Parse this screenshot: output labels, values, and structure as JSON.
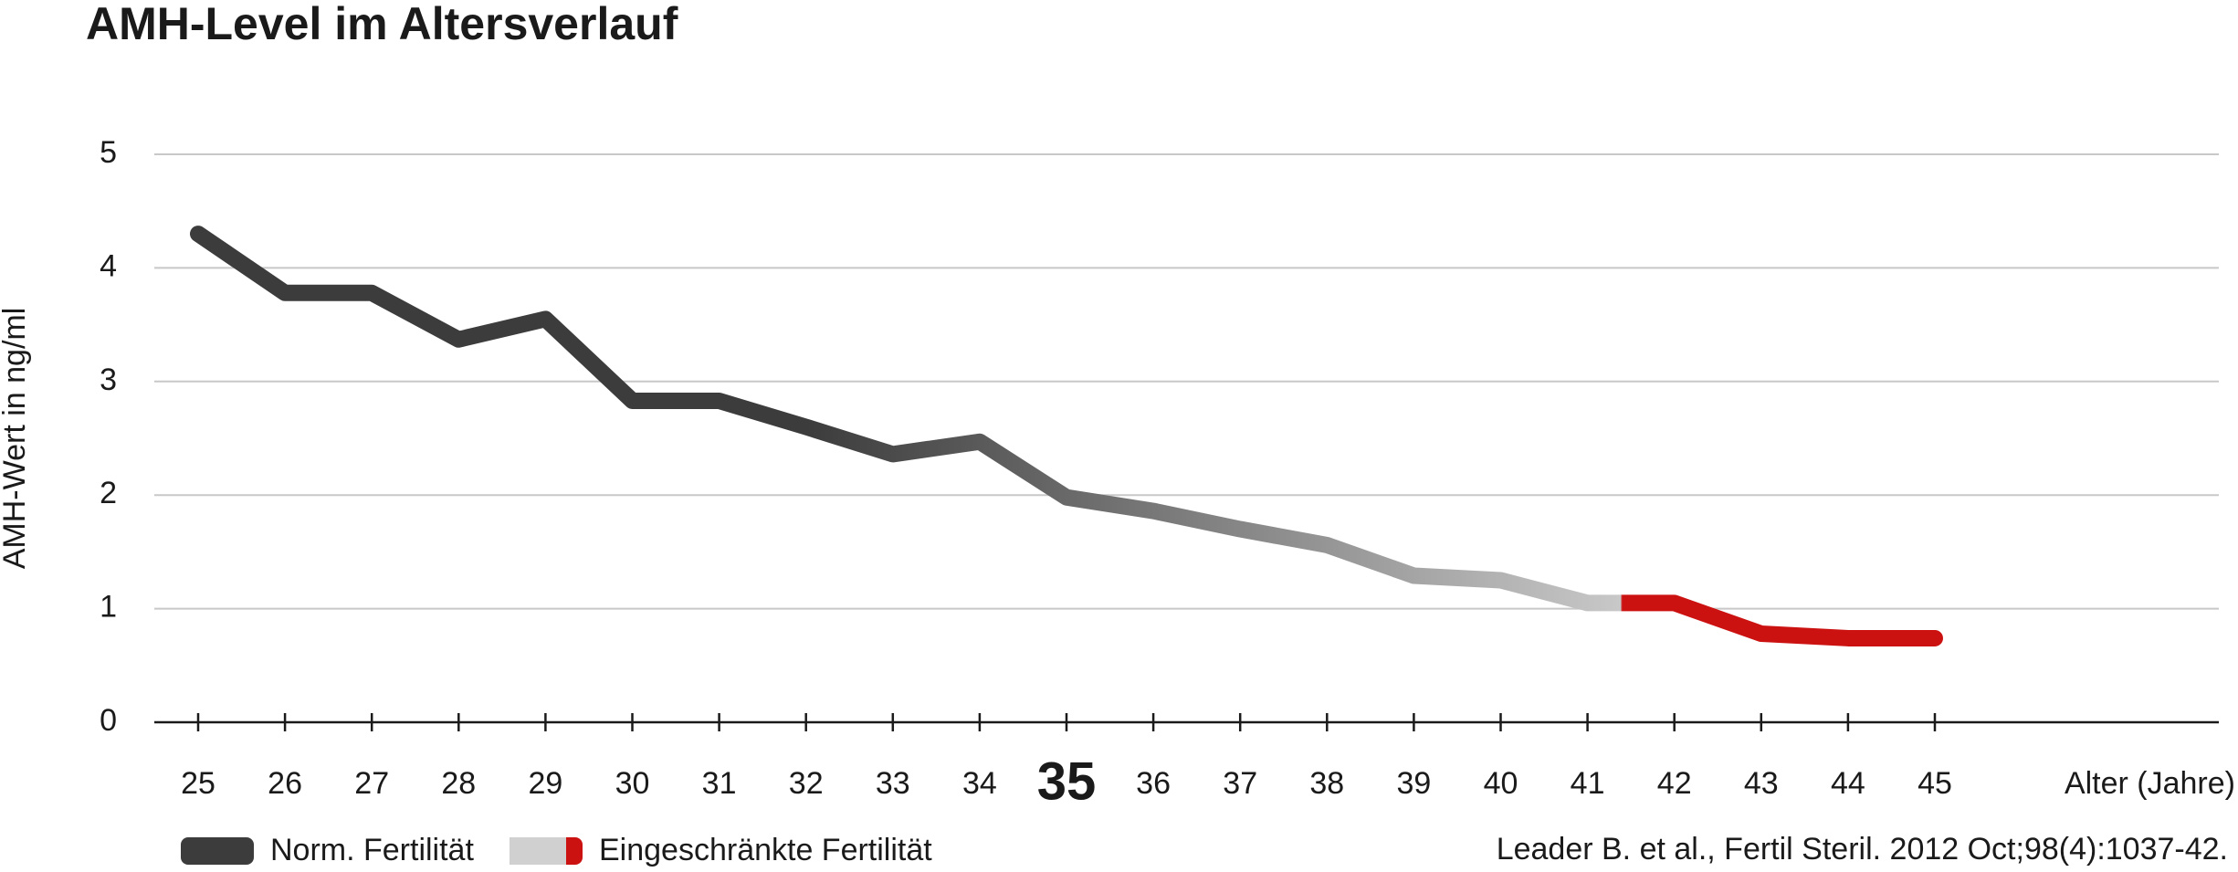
{
  "chart_data": {
    "type": "line",
    "title": "AMH-Level im Altersverlauf",
    "y_label": "AMH-Wert in ng/ml",
    "x_label": "Alter (Jahre)",
    "categories": [
      "25",
      "26",
      "27",
      "28",
      "29",
      "30",
      "31",
      "32",
      "33",
      "34",
      "35",
      "36",
      "37",
      "38",
      "39",
      "40",
      "41",
      "42",
      "43",
      "44",
      "45"
    ],
    "highlight_index": 10,
    "series": [
      {
        "name": "AMH",
        "colors": [
          "#3c3c3c",
          "#c8c8c8",
          "#cc1111"
        ],
        "values": [
          4.3,
          3.78,
          3.78,
          3.37,
          3.55,
          2.83,
          2.83,
          2.6,
          2.36,
          2.47,
          1.98,
          1.86,
          1.7,
          1.56,
          1.29,
          1.25,
          1.05,
          1.05,
          0.78,
          0.74,
          0.74
        ]
      }
    ],
    "ylim": [
      0,
      5
    ],
    "yticks": [
      0,
      1,
      2,
      3,
      4,
      5
    ],
    "grid": true,
    "legend": [
      {
        "name": "Norm. Fertilität",
        "color": "#3c3c3c"
      },
      {
        "name": "Eingeschränkte Fertilität",
        "color": "#d0d0d0",
        "accent": "#cc1111"
      }
    ],
    "source": "Leader B. et al., Fertil Steril. 2012 Oct;98(4):1037-42."
  }
}
